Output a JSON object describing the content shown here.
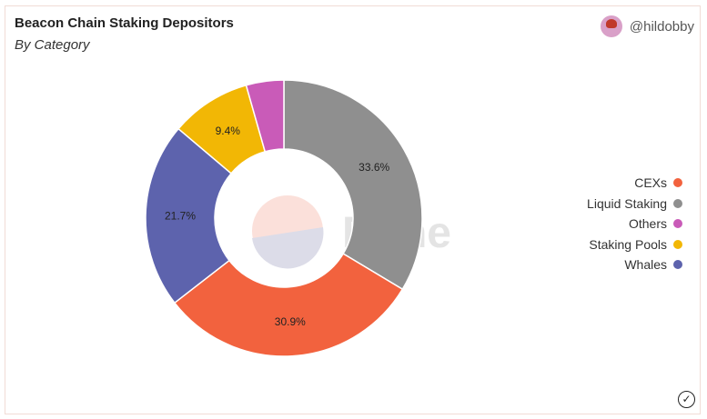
{
  "header": {
    "title": "Beacon Chain Staking Depositors",
    "subtitle": "By Category",
    "author": "@hildobby"
  },
  "watermark": "Dune",
  "chart_data": {
    "type": "pie",
    "donut": true,
    "title": "Beacon Chain Staking Depositors",
    "subtitle": "By Category",
    "slices": [
      {
        "name": "Liquid Staking",
        "value": 33.6,
        "label": "33.6%",
        "color": "#8f8f8f"
      },
      {
        "name": "CEXs",
        "value": 30.9,
        "label": "30.9%",
        "color": "#f2623e"
      },
      {
        "name": "Whales",
        "value": 21.7,
        "label": "21.7%",
        "color": "#5d63ad"
      },
      {
        "name": "Staking Pools",
        "value": 9.4,
        "label": "9.4%",
        "color": "#f2b705"
      },
      {
        "name": "Others",
        "value": 4.4,
        "label": "",
        "color": "#c95bb8"
      }
    ],
    "legend": {
      "placement": "right",
      "items": [
        {
          "name": "CEXs",
          "color": "#f2623e"
        },
        {
          "name": "Liquid Staking",
          "color": "#8f8f8f"
        },
        {
          "name": "Others",
          "color": "#c95bb8"
        },
        {
          "name": "Staking Pools",
          "color": "#f2b705"
        },
        {
          "name": "Whales",
          "color": "#5d63ad"
        }
      ]
    }
  }
}
